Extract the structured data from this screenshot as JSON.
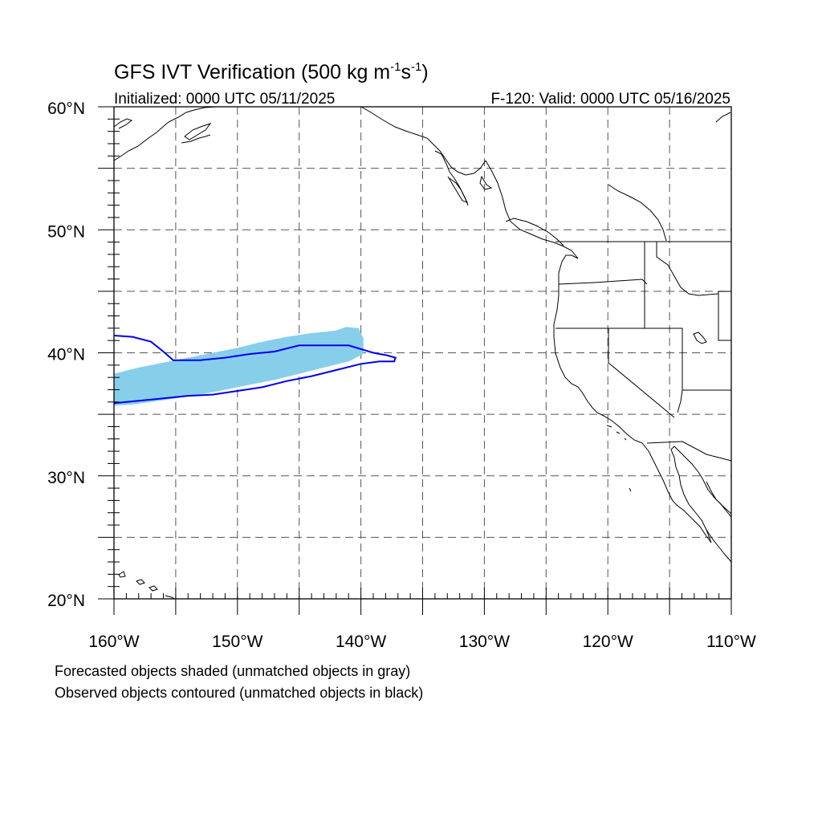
{
  "title": {
    "main": "GFS IVT Verification (500 kg m",
    "sup1": "-1",
    "mid": "s",
    "sup2": "-1",
    "end": ")"
  },
  "subtitle_left": "Initialized: 0000 UTC 05/11/2025",
  "subtitle_right": "F-120: Valid: 0000 UTC 05/16/2025",
  "map": {
    "lon_range": [
      -160,
      -110
    ],
    "lat_range": [
      20,
      60
    ],
    "lat_labels": [
      "20°N",
      "30°N",
      "40°N",
      "50°N",
      "60°N"
    ],
    "lon_labels": [
      "160°W",
      "150°W",
      "140°W",
      "130°W",
      "120°W",
      "110°W"
    ],
    "grid_style": "dashed every 5 degrees",
    "forecast_color": "#87ceea",
    "observed_color": "#0000ee",
    "coast_color": "#000000",
    "forecast_object": {
      "description_values": "lon/lat",
      "top": [
        [
          -160,
          38.3
        ],
        [
          -158,
          38.8
        ],
        [
          -156,
          39.2
        ],
        [
          -154,
          39.6
        ],
        [
          -152,
          40.0
        ],
        [
          -150,
          40.4
        ],
        [
          -148,
          40.9
        ],
        [
          -146,
          41.3
        ],
        [
          -144,
          41.6
        ],
        [
          -142,
          41.8
        ],
        [
          -141.2,
          42.1
        ],
        [
          -140.2,
          42.0
        ],
        [
          -139.8,
          41.2
        ]
      ],
      "bottom": [
        [
          -139.8,
          39.9
        ],
        [
          -141,
          39.3
        ],
        [
          -143,
          38.8
        ],
        [
          -145,
          38.3
        ],
        [
          -147,
          37.8
        ],
        [
          -149,
          37.4
        ],
        [
          -151,
          37.0
        ],
        [
          -153,
          36.6
        ],
        [
          -155,
          36.3
        ],
        [
          -157,
          36.0
        ],
        [
          -158.5,
          35.8
        ],
        [
          -160,
          35.7
        ]
      ]
    },
    "observed_object": {
      "outline": [
        [
          -160,
          41.4
        ],
        [
          -158.5,
          41.3
        ],
        [
          -157,
          40.9
        ],
        [
          -156,
          40.1
        ],
        [
          -155.2,
          39.4
        ],
        [
          -153,
          39.4
        ],
        [
          -151,
          39.6
        ],
        [
          -149,
          39.9
        ],
        [
          -147,
          40.1
        ],
        [
          -145,
          40.6
        ],
        [
          -143,
          40.6
        ],
        [
          -141,
          40.6
        ],
        [
          -139,
          40.0
        ],
        [
          -137.9,
          39.8
        ],
        [
          -137.2,
          39.6
        ],
        [
          -137.3,
          39.3
        ],
        [
          -138.5,
          39.3
        ],
        [
          -140,
          39.1
        ],
        [
          -142,
          38.6
        ],
        [
          -144,
          38.1
        ],
        [
          -146,
          37.7
        ],
        [
          -148,
          37.2
        ],
        [
          -150,
          36.9
        ],
        [
          -152,
          36.6
        ],
        [
          -154,
          36.5
        ],
        [
          -156,
          36.3
        ],
        [
          -157,
          36.2
        ],
        [
          -158,
          36.1
        ],
        [
          -159,
          36.0
        ],
        [
          -160,
          35.9
        ]
      ]
    }
  },
  "notes": [
    "Forecasted objects shaded (unmatched objects in gray)",
    "Observed objects contoured (unmatched objects in black)"
  ]
}
